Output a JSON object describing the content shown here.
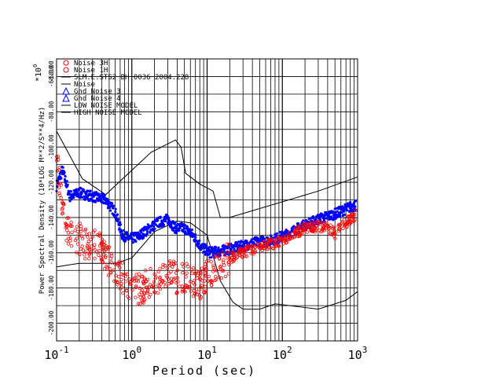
{
  "chart_data": {
    "type": "scatter",
    "title": "",
    "xlabel": "Period (sec)",
    "ylabel": "Power Spectral Density (10*LOG M**2/S**4/Hz)",
    "y_multiplier_label": "*10",
    "y_multiplier_exp": "0",
    "x_scale": "log",
    "xlim": [
      0.1,
      1000
    ],
    "ylim": [
      -210,
      -50
    ],
    "grid": "on",
    "x_ticks": [
      {
        "base": "10",
        "exp": "-1",
        "value": 0.1
      },
      {
        "base": "10",
        "exp": "0",
        "value": 1
      },
      {
        "base": "10",
        "exp": "1",
        "value": 10
      },
      {
        "base": "10",
        "exp": "2",
        "value": 100
      },
      {
        "base": "10",
        "exp": "3",
        "value": 1000
      }
    ],
    "y_ticks": [
      "-60.00",
      "-80.00",
      "-100.00",
      "-120.00",
      "-140.00",
      "-160.00",
      "-180.00",
      "-200.00"
    ],
    "y_tick_values": [
      -60,
      -80,
      -100,
      -120,
      -140,
      -160,
      -180,
      -200
    ],
    "y_top_label": "-60.00",
    "y_top2_label": "-50.00",
    "legend": [
      {
        "label": "Noise 3H",
        "symbol": "circle",
        "color": "#ff0000"
      },
      {
        "label": "Noise 1H",
        "symbol": "circle",
        "color": "#ff0000"
      },
      {
        "label": "SLM.E.STS2 BH 0036 2004.228",
        "symbol": "line",
        "color": "#000000"
      },
      {
        "label": "Noise",
        "symbol": "line",
        "color": "#000000"
      },
      {
        "label": "Gnd Noise 3",
        "symbol": "triangle",
        "color": "#0000ff"
      },
      {
        "label": "Gnd Noise 4",
        "symbol": "triangle",
        "color": "#0000ff"
      },
      {
        "label": "LOW NOISE MODEL",
        "symbol": "line",
        "color": "#000000"
      },
      {
        "label": "HIGH NOISE MODEL",
        "symbol": "line",
        "color": "#000000"
      }
    ],
    "series": [
      {
        "name": "HIGH NOISE MODEL",
        "color": "#000000",
        "x": [
          0.1,
          0.22,
          0.45,
          1.8,
          3.8,
          4.5,
          5.2,
          8.0,
          12.0,
          15.0,
          20.0,
          300,
          1000
        ],
        "y": [
          -91.0,
          -118.0,
          -127.0,
          -103.0,
          -96.0,
          -100.0,
          -115.0,
          -121.0,
          -125.0,
          -140.0,
          -140.0,
          -125.0,
          -117.0
        ]
      },
      {
        "name": "LOW NOISE MODEL",
        "color": "#000000",
        "x": [
          0.1,
          0.2,
          0.6,
          1.0,
          2.0,
          4.0,
          6.0,
          10.0,
          15.0,
          22.0,
          30.0,
          50.0,
          80.0,
          300.0,
          700.0,
          1000.0
        ],
        "y": [
          -168.0,
          -166.0,
          -166.0,
          -163.0,
          -148.0,
          -142.0,
          -143.0,
          -150.0,
          -176.0,
          -188.0,
          -192.0,
          -192.0,
          -189.0,
          -192.0,
          -187.0,
          -182.0
        ]
      },
      {
        "name": "Gnd Noise 3",
        "color": "#0000ff",
        "x": [
          0.1,
          0.12,
          0.15,
          0.2,
          0.3,
          0.45,
          0.6,
          0.75,
          0.95,
          1.2,
          1.6,
          2.2,
          3.0,
          3.8,
          5.0,
          6.5,
          8.5,
          11.0,
          15.0,
          20.0,
          30.0,
          45.0,
          70.0,
          110.0,
          180.0,
          300.0,
          500.0,
          800.0,
          950.0
        ],
        "y": [
          -122,
          -113,
          -128,
          -126,
          -128,
          -130,
          -137,
          -150,
          -152,
          -151,
          -147,
          -143,
          -141,
          -146,
          -146,
          -150,
          -157,
          -160,
          -159,
          -158,
          -156,
          -154,
          -153,
          -150,
          -145,
          -141,
          -138,
          -134,
          -133
        ]
      },
      {
        "name": "Noise 3H",
        "color": "#ff0000",
        "x": [
          0.1,
          0.11,
          0.13,
          0.16,
          0.2,
          0.25,
          0.3,
          0.4,
          0.5,
          0.6,
          0.8,
          1.0,
          2.0,
          2.5,
          3.0,
          3.5,
          4.0,
          5.0,
          6.0,
          7.0,
          8.0,
          9.0,
          10.0,
          12.0,
          15.0,
          18.0,
          25.0,
          40.0,
          60.0,
          100.0,
          150.0,
          200.0,
          300.0,
          400.0,
          500.0,
          700.0,
          950.0
        ],
        "y": [
          -107,
          -120,
          -145,
          -150,
          -152,
          -155,
          -155,
          -158,
          -165,
          -170,
          -175,
          -182,
          -177,
          -174,
          -173,
          -171,
          -176,
          -174,
          -173,
          -180,
          -178,
          -175,
          -173,
          -171,
          -168,
          -164,
          -161,
          -158,
          -156,
          -153,
          -149,
          -146,
          -145,
          -146,
          -149,
          -143,
          -139
        ]
      }
    ]
  }
}
